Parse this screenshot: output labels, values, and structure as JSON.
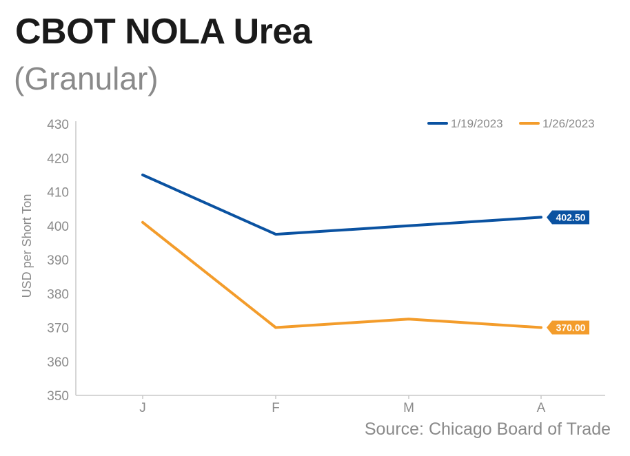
{
  "chart_data": {
    "type": "line",
    "title": "CBOT NOLA Urea",
    "subtitle": "(Granular)",
    "source": "Source: Chicago Board of Trade",
    "ylabel": "USD per Short Ton",
    "xlabel": "",
    "ylim": [
      350,
      430
    ],
    "yticks": [
      350,
      360,
      370,
      380,
      390,
      400,
      410,
      420,
      430
    ],
    "categories": [
      "J",
      "F",
      "M",
      "A"
    ],
    "legend_position": "top-right",
    "grid": false,
    "series": [
      {
        "name": "1/19/2023",
        "color": "#0a52a1",
        "values": [
          415,
          397.5,
          400,
          402.5
        ],
        "end_label": "402.50"
      },
      {
        "name": "1/26/2023",
        "color": "#f39c2b",
        "values": [
          401,
          370,
          372.5,
          370
        ],
        "end_label": "370.00"
      }
    ]
  }
}
